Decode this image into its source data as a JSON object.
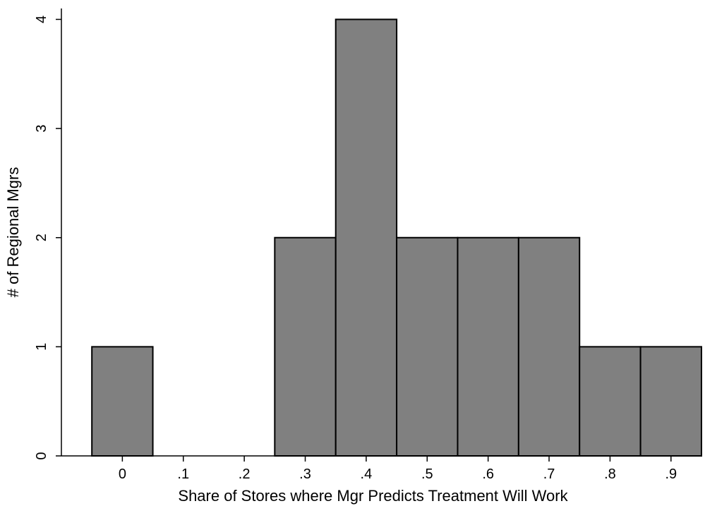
{
  "chart_data": {
    "type": "bar",
    "title": "",
    "xlabel": "Share of Stores where Mgr Predicts Treatment Will Work",
    "ylabel": "# of Regional Mgrs",
    "bin_width": 0.1,
    "x": [
      0,
      0.1,
      0.2,
      0.3,
      0.4,
      0.5,
      0.6,
      0.7,
      0.8,
      0.9
    ],
    "values": [
      1,
      0,
      0,
      2,
      4,
      2,
      2,
      2,
      1,
      1
    ],
    "xticks": [
      0,
      0.1,
      0.2,
      0.3,
      0.4,
      0.5,
      0.6,
      0.7,
      0.8,
      0.9
    ],
    "xtick_labels": [
      "0",
      ".1",
      ".2",
      ".3",
      ".4",
      ".5",
      ".6",
      ".7",
      ".8",
      ".9"
    ],
    "yticks": [
      0,
      1,
      2,
      3,
      4
    ],
    "ytick_labels": [
      "0",
      "1",
      "2",
      "3",
      "4"
    ],
    "xlim": [
      -0.1,
      0.95
    ],
    "ylim": [
      0,
      4.1
    ],
    "grid": false,
    "legend": "none",
    "bar_color": "#808080",
    "edge_color": "#000000"
  }
}
